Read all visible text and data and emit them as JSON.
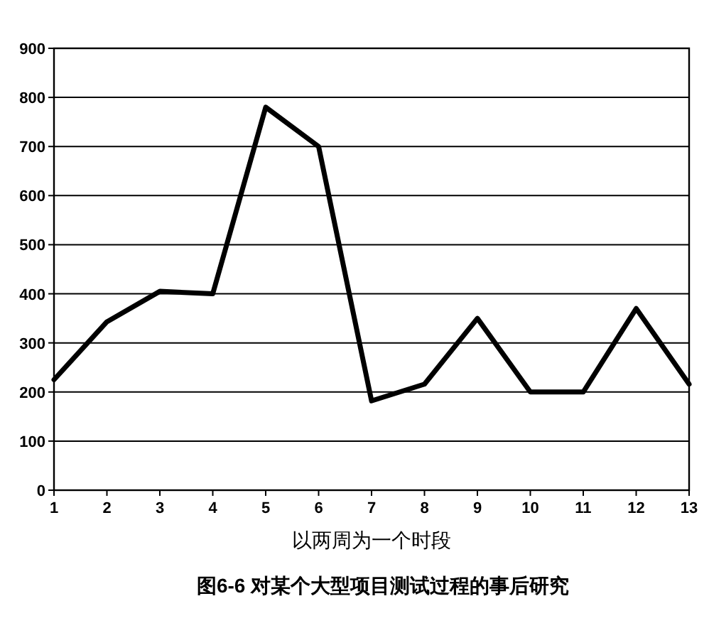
{
  "chart_data": {
    "type": "line",
    "xlabel": "以两周为一个时段",
    "annotations": [
      "图6-6  对某个大型项目测试过程的事后研究"
    ],
    "x": [
      1,
      2,
      3,
      4,
      5,
      6,
      7,
      8,
      9,
      10,
      11,
      12,
      13
    ],
    "values": [
      225,
      343,
      405,
      400,
      780,
      700,
      182,
      216,
      350,
      200,
      200,
      370,
      216
    ],
    "color": "#000000",
    "xlim": [
      1,
      13
    ],
    "ylim": [
      0,
      900
    ],
    "xticks": [
      1,
      2,
      3,
      4,
      5,
      6,
      7,
      8,
      9,
      10,
      11,
      12,
      13
    ],
    "yticks": [
      0,
      100,
      200,
      300,
      400,
      500,
      600,
      700,
      800,
      900
    ],
    "grid": "y"
  }
}
